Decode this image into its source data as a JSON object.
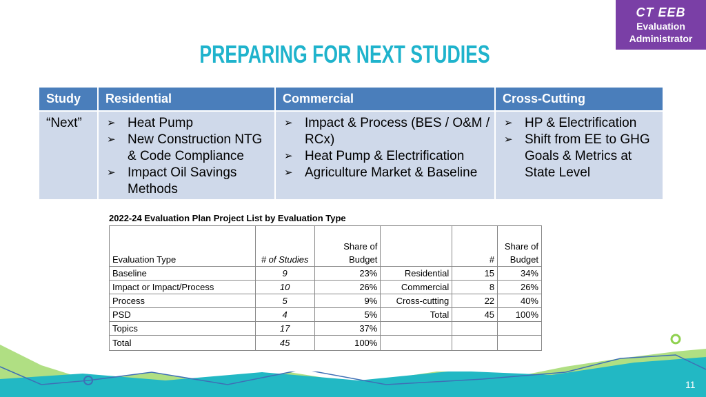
{
  "badge": {
    "line1": "CT EEB",
    "line2": "Evaluation",
    "line3": "Administrator"
  },
  "title": "PREPARING FOR NEXT STUDIES",
  "table": {
    "header": [
      "Study",
      "Residential",
      "Commercial",
      "Cross-Cutting"
    ],
    "rows": [
      {
        "study": "“Next”",
        "residential": [
          "Heat Pump",
          "New Construction NTG & Code Compliance",
          "Impact Oil Savings Methods"
        ],
        "commercial": [
          "Impact & Process (BES / O&M / RCx)",
          "Heat Pump & Electrification",
          "Agriculture Market & Baseline"
        ],
        "cross_cutting": [
          "HP & Electrification",
          "Shift from EE to GHG Goals & Metrics at State Level"
        ]
      }
    ]
  },
  "plan_table": {
    "caption": "2022-24 Evaluation Plan Project List by Evaluation Type",
    "header": [
      "Evaluation Type",
      "# of Studies",
      "Share of Budget",
      "#",
      "Share of Budget"
    ],
    "rows": [
      [
        "Baseline",
        "9",
        "23%"
      ],
      [
        "Impact or Impact/Process",
        "10",
        "26%"
      ],
      [
        "Process",
        "5",
        "9%"
      ],
      [
        "PSD",
        "4",
        "5%"
      ],
      [
        "Topics",
        "17",
        "37%"
      ],
      [
        "Total",
        "45",
        "100%"
      ]
    ],
    "sector_rows": [
      [
        "Residential",
        "15",
        "34%"
      ],
      [
        "Commercial",
        "8",
        "26%"
      ],
      [
        "Cross-cutting",
        "22",
        "40%"
      ],
      [
        "Total",
        "45",
        "100%"
      ]
    ]
  },
  "page_number": "11"
}
